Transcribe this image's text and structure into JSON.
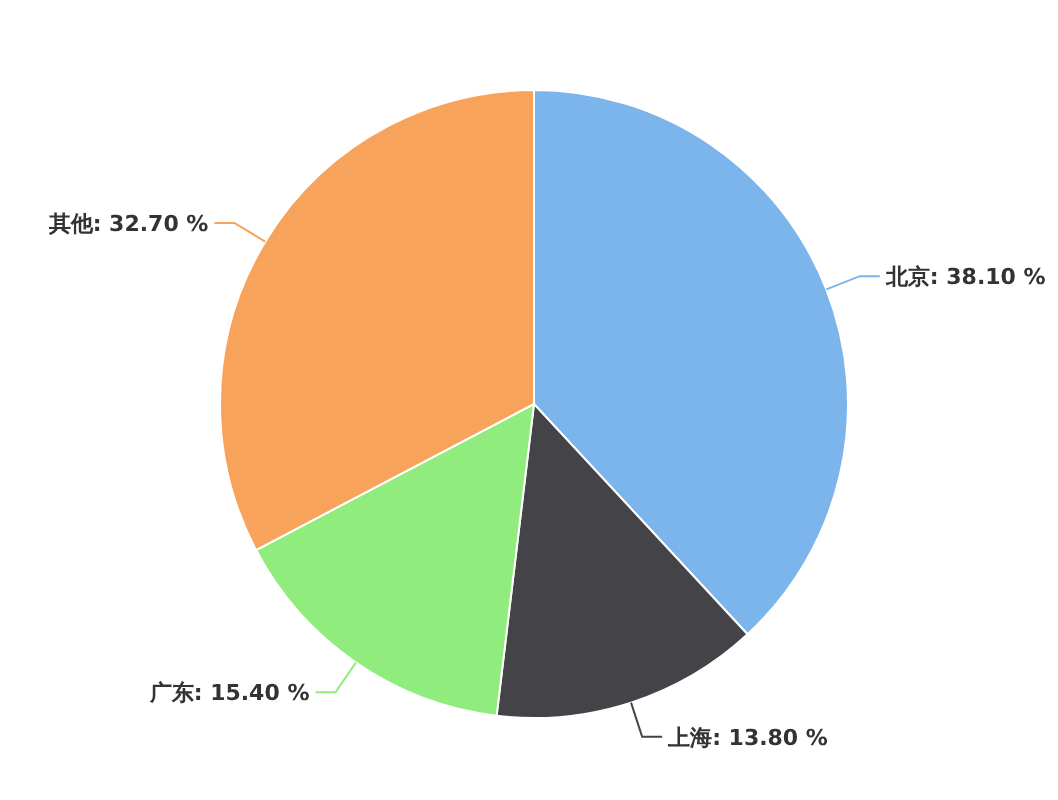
{
  "chart_data": {
    "type": "pie",
    "categories": [
      "北京",
      "上海",
      "广东",
      "其他"
    ],
    "values": [
      38.1,
      13.8,
      15.4,
      32.7
    ],
    "value_labels": [
      "38.10 %",
      "13.80 %",
      "15.40 %",
      "32.70 %"
    ],
    "colors": [
      "#7cb5ec",
      "#434348",
      "#90ed7d",
      "#f7a35c"
    ]
  }
}
